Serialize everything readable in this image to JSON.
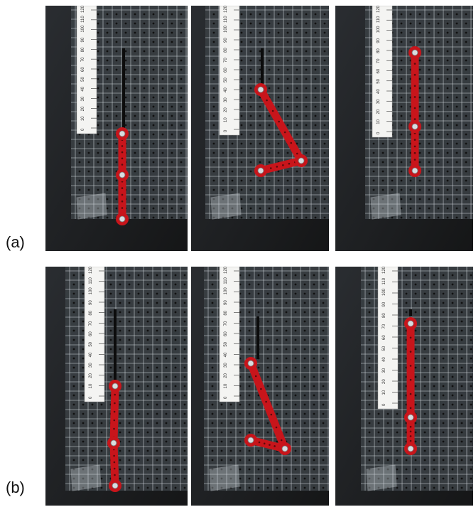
{
  "figure": {
    "row_labels": [
      "(a)",
      "(b)"
    ],
    "ruler_ticks": [
      "120",
      "110",
      "100",
      "90",
      "80",
      "70",
      "60",
      "50",
      "40",
      "30",
      "20",
      "10",
      "0"
    ],
    "colors": {
      "background": "#1d1f22",
      "grid_board": "#c8ced3",
      "ruler": "#f4f4f2",
      "link": "#c8151b",
      "bolt": "#d9dcdf"
    },
    "panels": [
      {
        "row": "a",
        "col": 1,
        "pose": "hanging-straight"
      },
      {
        "row": "a",
        "col": 2,
        "pose": "folded-v"
      },
      {
        "row": "a",
        "col": 3,
        "pose": "raised-straight"
      },
      {
        "row": "b",
        "col": 1,
        "pose": "hanging-straight"
      },
      {
        "row": "b",
        "col": 2,
        "pose": "folded-v"
      },
      {
        "row": "b",
        "col": 3,
        "pose": "raised-straight"
      }
    ]
  }
}
